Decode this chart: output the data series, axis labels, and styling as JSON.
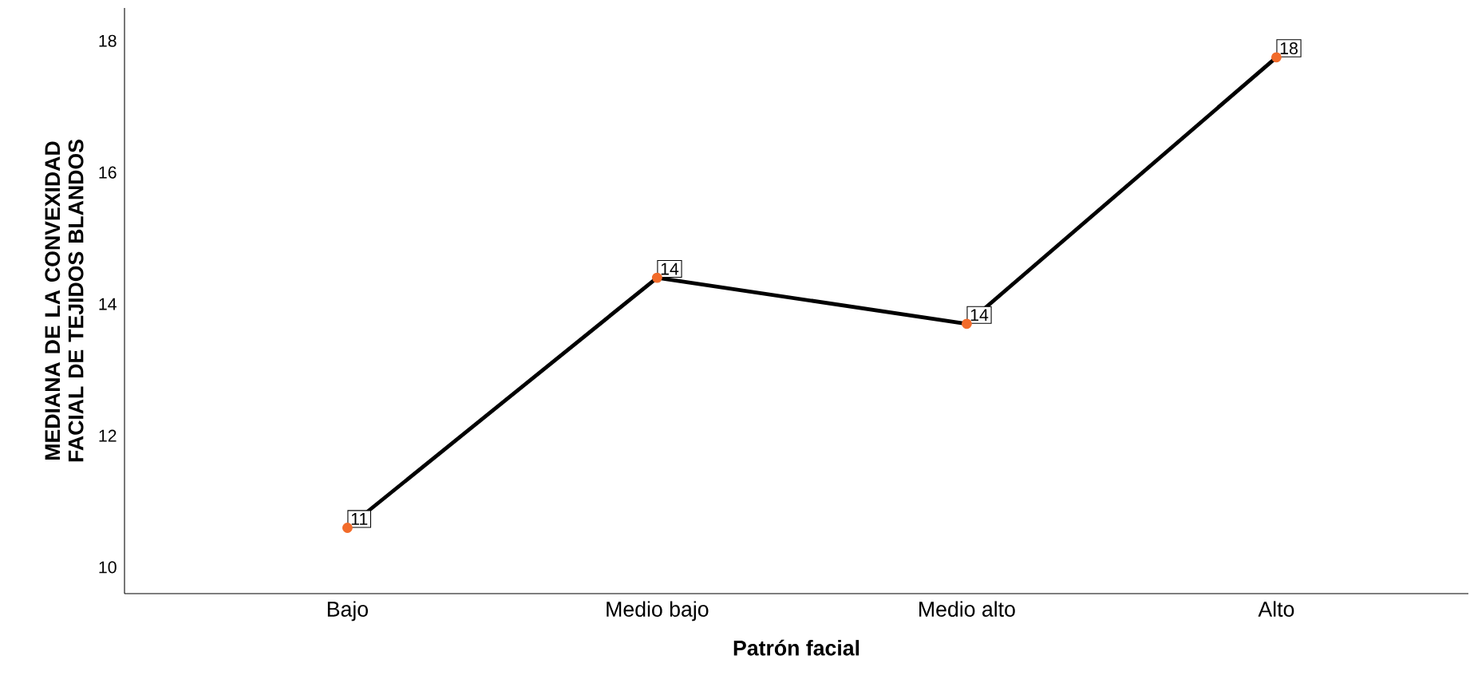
{
  "chart_data": {
    "type": "line",
    "xlabel": "Patrón facial",
    "ylabel": "MEDIANA DE LA CONVEXIDAD FACIAL DE TEJIDOS BLANDOS",
    "categories": [
      "Bajo",
      "Medio bajo",
      "Medio alto",
      "Alto"
    ],
    "values": [
      10.6,
      14.4,
      13.7,
      17.75
    ],
    "value_labels": [
      "11",
      "14",
      "14",
      "18"
    ],
    "color": "#000000",
    "colors": [
      "#f26b2a",
      "#f26b2a",
      "#f26b2a",
      "#f26b2a"
    ],
    "marker": "circle",
    "ylim": [
      9.6,
      18.5
    ],
    "yticks": [
      10,
      12,
      14,
      16,
      18
    ],
    "grid": false
  }
}
